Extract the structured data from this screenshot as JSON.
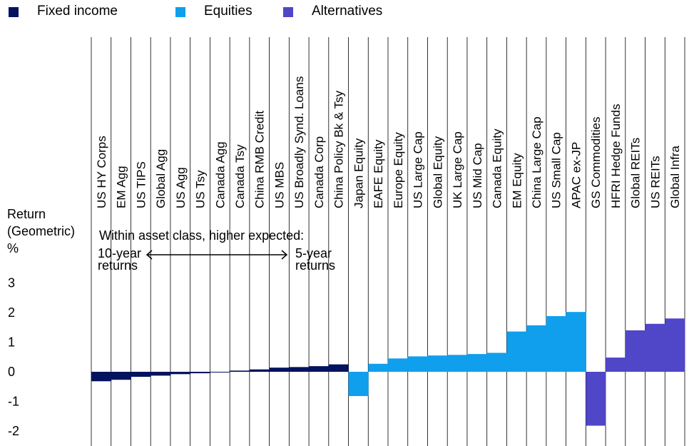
{
  "legend": [
    {
      "label": "Fixed income",
      "color": "#04135e"
    },
    {
      "label": "Equities",
      "color": "#109fec"
    },
    {
      "label": "Alternatives",
      "color": "#5046c8"
    }
  ],
  "y_axis": {
    "title_line1": "Return",
    "title_line2": "(Geometric)",
    "title_line3": "%",
    "ticks": [
      "3",
      "2",
      "1",
      "0",
      "-1",
      "-2"
    ]
  },
  "annotation": {
    "heading": "Within asset class, higher expected:",
    "left_line1": "10-year",
    "left_line2": "returns",
    "right_line1": "5-year",
    "right_line2": "returns"
  },
  "chart_data": {
    "type": "bar",
    "ylabel": "Return (Geometric) %",
    "ylim": [
      -2.3,
      3.3
    ],
    "yticks": [
      3,
      2,
      1,
      0,
      -1,
      -2
    ],
    "grid": "vertical separators between categories",
    "legend_position": "top-left",
    "categories": [
      "US HY Corps",
      "EM Agg",
      "US TIPS",
      "Global Agg",
      "US Agg",
      "US Tsy",
      "Canada Agg",
      "Canada Tsy",
      "China RMB Credit",
      "US MBS",
      "US Broadly Synd. Loans",
      "Canada Corp",
      "China Policy Bk & Tsy",
      "Japan Equity",
      "EAFE Equity",
      "Europe Equity",
      "US Large Cap",
      "Global Equity",
      "UK Large Cap",
      "US Mid Cap",
      "Canada Equity",
      "EM Equity",
      "China Large Cap",
      "US Small Cap",
      "APAC ex-JP",
      "GS Commodities",
      "HFRI Hedge Funds",
      "Global REITs",
      "US REITs",
      "Global Infra"
    ],
    "series": [
      {
        "name": "Fixed income",
        "color": "#04135e",
        "values": [
          -0.32,
          -0.27,
          -0.17,
          -0.13,
          -0.08,
          -0.05,
          -0.01,
          0.04,
          0.08,
          0.14,
          0.16,
          0.19,
          0.25,
          null,
          null,
          null,
          null,
          null,
          null,
          null,
          null,
          null,
          null,
          null,
          null,
          null,
          null,
          null,
          null,
          null
        ]
      },
      {
        "name": "Equities",
        "color": "#109fec",
        "values": [
          null,
          null,
          null,
          null,
          null,
          null,
          null,
          null,
          null,
          null,
          null,
          null,
          null,
          -0.82,
          0.27,
          0.45,
          0.52,
          0.55,
          0.57,
          0.6,
          0.64,
          1.36,
          1.57,
          1.88,
          2.02,
          null,
          null,
          null,
          null,
          null
        ]
      },
      {
        "name": "Alternatives",
        "color": "#5046c8",
        "values": [
          null,
          null,
          null,
          null,
          null,
          null,
          null,
          null,
          null,
          null,
          null,
          null,
          null,
          null,
          null,
          null,
          null,
          null,
          null,
          null,
          null,
          null,
          null,
          null,
          null,
          -1.82,
          0.48,
          1.4,
          1.62,
          1.8
        ]
      }
    ]
  }
}
